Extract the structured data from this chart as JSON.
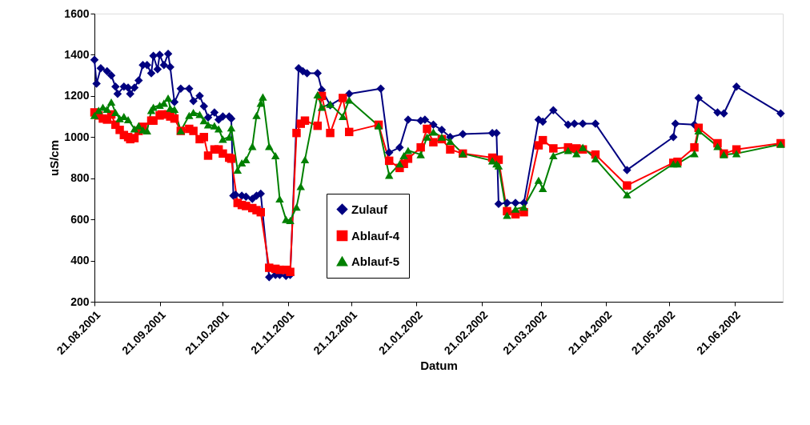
{
  "chart_data": {
    "type": "line",
    "xlabel": "Datum",
    "ylabel": "uS/cm",
    "xlim": [
      "2001-08-21",
      "2002-07-14"
    ],
    "ylim": [
      200,
      1600
    ],
    "yticks": [
      200,
      400,
      600,
      800,
      1000,
      1200,
      1400,
      1600
    ],
    "xticks": [
      {
        "value": "2001-08-21",
        "label": "21.08.2001"
      },
      {
        "value": "2001-09-21",
        "label": "21.09.2001"
      },
      {
        "value": "2001-10-21",
        "label": "21.10.2001"
      },
      {
        "value": "2001-11-21",
        "label": "21.11.2001"
      },
      {
        "value": "2001-12-21",
        "label": "21.12.2001"
      },
      {
        "value": "2002-01-21",
        "label": "21.01.2002"
      },
      {
        "value": "2002-02-21",
        "label": "21.02.2002"
      },
      {
        "value": "2002-03-21",
        "label": "21.03.2002"
      },
      {
        "value": "2002-04-21",
        "label": "21.04.2002"
      },
      {
        "value": "2002-05-21",
        "label": "21.05.2002"
      },
      {
        "value": "2002-06-21",
        "label": "21.06.2002"
      }
    ],
    "grid": false,
    "legend": "bottom",
    "line_style": "solid",
    "series": [
      {
        "name": "Zulauf",
        "color": "#000080",
        "marker": "diamond",
        "x": [
          "2001-08-21",
          "2001-08-22",
          "2001-08-24",
          "2001-08-27",
          "2001-08-29",
          "2001-08-31",
          "2001-09-01",
          "2001-09-04",
          "2001-09-06",
          "2001-09-07",
          "2001-09-09",
          "2001-09-11",
          "2001-09-13",
          "2001-09-15",
          "2001-09-17",
          "2001-09-18",
          "2001-09-20",
          "2001-09-21",
          "2001-09-23",
          "2001-09-25",
          "2001-09-26",
          "2001-09-28",
          "2001-10-01",
          "2001-10-05",
          "2001-10-07",
          "2001-10-10",
          "2001-10-12",
          "2001-10-14",
          "2001-10-17",
          "2001-10-19",
          "2001-10-21",
          "2001-10-24",
          "2001-10-25",
          "2001-10-26",
          "2001-10-27",
          "2001-10-30",
          "2001-11-01",
          "2001-11-04",
          "2001-11-06",
          "2001-11-08",
          "2001-11-12",
          "2001-11-15",
          "2001-11-17",
          "2001-11-20",
          "2001-11-22",
          "2001-11-26",
          "2001-11-28",
          "2001-11-30",
          "2001-12-05",
          "2001-12-07",
          "2001-12-11",
          "2001-12-20",
          "2002-01-04",
          "2002-01-08",
          "2002-01-13",
          "2002-01-17",
          "2002-01-23",
          "2002-01-25",
          "2002-01-29",
          "2002-02-02",
          "2002-02-06",
          "2002-02-12",
          "2002-02-26",
          "2002-02-28",
          "2002-03-01",
          "2002-03-05",
          "2002-03-09",
          "2002-03-13",
          "2002-03-20",
          "2002-03-22",
          "2002-03-27",
          "2002-04-03",
          "2002-04-06",
          "2002-04-10",
          "2002-04-16",
          "2002-05-01",
          "2002-05-23",
          "2002-05-24",
          "2002-06-02",
          "2002-06-04",
          "2002-06-13",
          "2002-06-16",
          "2002-06-22",
          "2002-07-13"
        ],
        "values": [
          1375,
          1260,
          1335,
          1320,
          1300,
          1245,
          1210,
          1245,
          1240,
          1210,
          1240,
          1275,
          1350,
          1350,
          1310,
          1395,
          1330,
          1400,
          1350,
          1405,
          1340,
          1170,
          1235,
          1235,
          1175,
          1200,
          1150,
          1095,
          1120,
          1085,
          1100,
          1100,
          1090,
          715,
          720,
          715,
          710,
          700,
          715,
          725,
          320,
          330,
          330,
          325,
          330,
          1335,
          1320,
          1310,
          1310,
          1230,
          1155,
          1210,
          1235,
          925,
          950,
          1085,
          1080,
          1085,
          1060,
          1035,
          1000,
          1015,
          1020,
          1020,
          675,
          680,
          680,
          680,
          1085,
          1075,
          1130,
          1060,
          1065,
          1065,
          1065,
          840,
          1000,
          1065,
          1060,
          1190,
          1120,
          1115,
          1245,
          1115
        ]
      },
      {
        "name": "Ablauf-4",
        "color": "#ff0000",
        "marker": "square",
        "x": [
          "2001-08-21",
          "2001-08-23",
          "2001-08-25",
          "2001-08-27",
          "2001-08-29",
          "2001-08-31",
          "2001-09-02",
          "2001-09-04",
          "2001-09-06",
          "2001-09-07",
          "2001-09-09",
          "2001-09-11",
          "2001-09-13",
          "2001-09-17",
          "2001-09-18",
          "2001-09-21",
          "2001-09-22",
          "2001-09-25",
          "2001-09-26",
          "2001-09-28",
          "2001-10-01",
          "2001-10-05",
          "2001-10-07",
          "2001-10-10",
          "2001-10-12",
          "2001-10-14",
          "2001-10-17",
          "2001-10-19",
          "2001-10-21",
          "2001-10-24",
          "2001-10-25",
          "2001-10-28",
          "2001-10-30",
          "2001-11-01",
          "2001-11-04",
          "2001-11-06",
          "2001-11-08",
          "2001-11-12",
          "2001-11-15",
          "2001-11-17",
          "2001-11-20",
          "2001-11-22",
          "2001-11-25",
          "2001-11-27",
          "2001-11-29",
          "2001-12-05",
          "2001-12-07",
          "2001-12-11",
          "2001-12-17",
          "2001-12-20",
          "2002-01-03",
          "2002-01-08",
          "2002-01-13",
          "2002-01-15",
          "2002-01-17",
          "2002-01-23",
          "2002-01-26",
          "2002-01-29",
          "2002-02-02",
          "2002-02-06",
          "2002-02-12",
          "2002-02-26",
          "2002-03-01",
          "2002-03-05",
          "2002-03-09",
          "2002-03-13",
          "2002-03-20",
          "2002-03-22",
          "2002-03-27",
          "2002-04-03",
          "2002-04-07",
          "2002-04-10",
          "2002-04-16",
          "2002-05-01",
          "2002-05-23",
          "2002-05-25",
          "2002-06-02",
          "2002-06-04",
          "2002-06-13",
          "2002-06-16",
          "2002-06-22",
          "2002-07-13"
        ],
        "values": [
          1120,
          1105,
          1090,
          1085,
          1110,
          1060,
          1035,
          1010,
          1000,
          990,
          995,
          1030,
          1050,
          1080,
          1080,
          1105,
          1110,
          1110,
          1100,
          1090,
          1030,
          1040,
          1030,
          990,
          1000,
          910,
          940,
          940,
          920,
          900,
          895,
          680,
          670,
          665,
          655,
          645,
          635,
          365,
          360,
          355,
          355,
          345,
          1020,
          1065,
          1080,
          1055,
          1200,
          1020,
          1190,
          1025,
          1060,
          885,
          850,
          870,
          895,
          950,
          1040,
          975,
          990,
          940,
          920,
          900,
          890,
          640,
          625,
          635,
          960,
          985,
          945,
          950,
          945,
          940,
          915,
          765,
          875,
          880,
          950,
          1045,
          970,
          920,
          940,
          970
        ]
      },
      {
        "name": "Ablauf-5",
        "color": "#008000",
        "marker": "triangle",
        "x": [
          "2001-08-21",
          "2001-08-23",
          "2001-08-25",
          "2001-08-27",
          "2001-08-29",
          "2001-08-31",
          "2001-09-02",
          "2001-09-04",
          "2001-09-06",
          "2001-09-09",
          "2001-09-11",
          "2001-09-13",
          "2001-09-15",
          "2001-09-17",
          "2001-09-18",
          "2001-09-21",
          "2001-09-23",
          "2001-09-25",
          "2001-09-26",
          "2001-09-28",
          "2001-10-01",
          "2001-10-05",
          "2001-10-07",
          "2001-10-10",
          "2001-10-12",
          "2001-10-14",
          "2001-10-17",
          "2001-10-19",
          "2001-10-21",
          "2001-10-24",
          "2001-10-25",
          "2001-10-28",
          "2001-10-30",
          "2001-11-01",
          "2001-11-04",
          "2001-11-06",
          "2001-11-08",
          "2001-11-09",
          "2001-11-12",
          "2001-11-15",
          "2001-11-17",
          "2001-11-20",
          "2001-11-22",
          "2001-11-25",
          "2001-11-27",
          "2001-11-29",
          "2001-12-05",
          "2001-12-07",
          "2001-12-11",
          "2001-12-17",
          "2001-12-20",
          "2002-01-03",
          "2002-01-08",
          "2002-01-13",
          "2002-01-15",
          "2002-01-17",
          "2002-01-23",
          "2002-01-26",
          "2002-01-29",
          "2002-02-02",
          "2002-02-06",
          "2002-02-12",
          "2002-02-26",
          "2002-02-28",
          "2002-03-01",
          "2002-03-05",
          "2002-03-09",
          "2002-03-13",
          "2002-03-20",
          "2002-03-22",
          "2002-03-27",
          "2002-04-03",
          "2002-04-07",
          "2002-04-10",
          "2002-04-16",
          "2002-05-01",
          "2002-05-23",
          "2002-05-25",
          "2002-06-02",
          "2002-06-04",
          "2002-06-13",
          "2002-06-16",
          "2002-06-22",
          "2002-07-13"
        ],
        "values": [
          1105,
          1130,
          1145,
          1135,
          1170,
          1120,
          1090,
          1100,
          1085,
          1040,
          1055,
          1035,
          1030,
          1130,
          1145,
          1155,
          1165,
          1190,
          1140,
          1135,
          1030,
          1105,
          1120,
          1110,
          1080,
          1060,
          1055,
          1040,
          990,
          1000,
          1045,
          840,
          875,
          890,
          955,
          1105,
          1165,
          1195,
          955,
          910,
          700,
          600,
          595,
          660,
          760,
          890,
          1205,
          1145,
          1160,
          1100,
          1180,
          1055,
          815,
          870,
          910,
          935,
          915,
          1000,
          1025,
          1000,
          980,
          920,
          885,
          870,
          860,
          620,
          650,
          660,
          790,
          750,
          910,
          935,
          920,
          950,
          895,
          720,
          870,
          870,
          920,
          1030,
          955,
          915,
          920,
          965
        ]
      }
    ]
  }
}
